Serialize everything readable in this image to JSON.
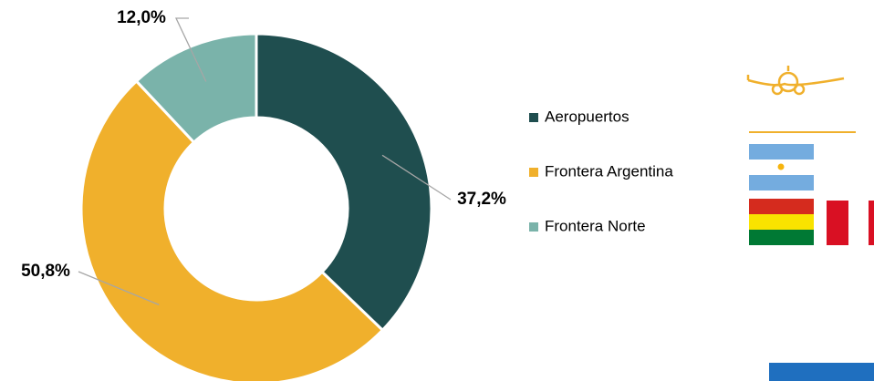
{
  "chart_data": {
    "type": "donut",
    "categories": [
      "Aeropuertos",
      "Frontera Argentina",
      "Frontera Norte"
    ],
    "values": [
      37.2,
      50.8,
      12.0
    ],
    "value_labels": [
      "37,2%",
      "50,8%",
      "12,0%"
    ],
    "colors": [
      "#1f4e4f",
      "#f0b02c",
      "#7ab3aa"
    ],
    "legend": "right"
  }
}
